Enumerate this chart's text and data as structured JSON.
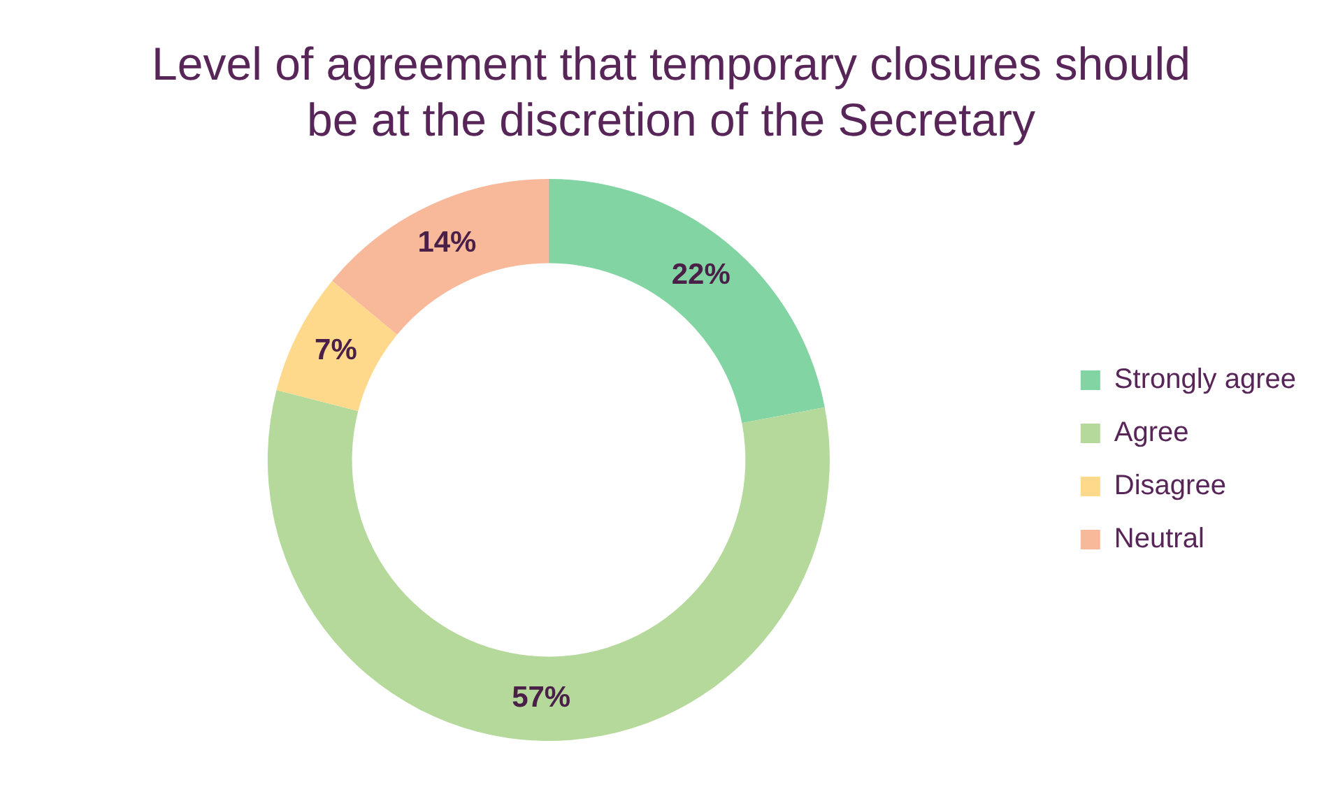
{
  "chart_data": {
    "type": "donut",
    "title": "Level of agreement that temporary closures should be at the discretion of the Secretary",
    "categories": [
      "Strongly agree",
      "Agree",
      "Disagree",
      "Neutral"
    ],
    "values": [
      22,
      57,
      7,
      14
    ],
    "value_labels": [
      "22%",
      "57%",
      "7%",
      "14%"
    ],
    "colors": [
      "#82d5a2",
      "#b4d99b",
      "#fed88b",
      "#f8b99b"
    ],
    "legend": "right"
  }
}
